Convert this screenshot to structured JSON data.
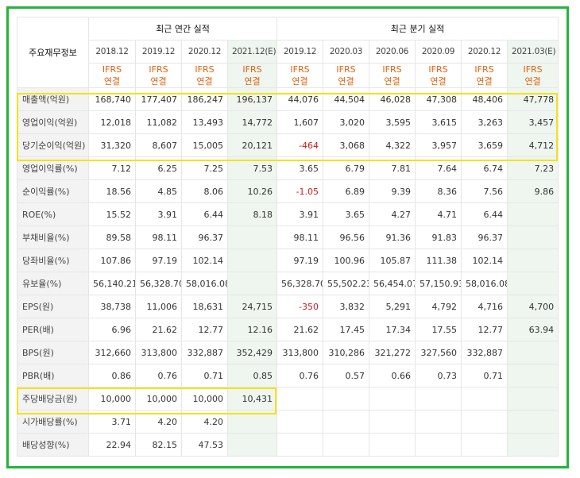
{
  "corner_label": "주요재무정보",
  "groups": {
    "annual": "최근 연간 실적",
    "quarterly": "최근 분기 실적"
  },
  "periods": [
    "2018.12",
    "2019.12",
    "2020.12",
    "2021.12(E)",
    "2019.12",
    "2020.03",
    "2020.06",
    "2020.09",
    "2020.12",
    "2021.03(E)"
  ],
  "ifrs": {
    "line1": "IFRS",
    "line2": "연결"
  },
  "rows": [
    {
      "label": "매출액(억원)",
      "values": [
        "168,740",
        "177,407",
        "186,247",
        "196,137",
        "44,076",
        "44,504",
        "46,028",
        "47,308",
        "48,406",
        "47,778"
      ]
    },
    {
      "label": "영업이익(억원)",
      "values": [
        "12,018",
        "11,082",
        "13,493",
        "14,772",
        "1,607",
        "3,020",
        "3,595",
        "3,615",
        "3,263",
        "3,457"
      ]
    },
    {
      "label": "당기순이익(억원)",
      "values": [
        "31,320",
        "8,607",
        "15,005",
        "20,121",
        "-464",
        "3,068",
        "4,322",
        "3,957",
        "3,659",
        "4,712"
      ]
    },
    {
      "label": "영업이익률(%)",
      "values": [
        "7.12",
        "6.25",
        "7.25",
        "7.53",
        "3.65",
        "6.79",
        "7.81",
        "7.64",
        "6.74",
        "7.23"
      ]
    },
    {
      "label": "순이익률(%)",
      "values": [
        "18.56",
        "4.85",
        "8.06",
        "10.26",
        "-1.05",
        "6.89",
        "9.39",
        "8.36",
        "7.56",
        "9.86"
      ]
    },
    {
      "label": "ROE(%)",
      "values": [
        "15.52",
        "3.91",
        "6.44",
        "8.18",
        "3.91",
        "3.65",
        "4.27",
        "4.71",
        "6.44",
        ""
      ]
    },
    {
      "label": "부채비율(%)",
      "values": [
        "89.58",
        "98.11",
        "96.37",
        "",
        "98.11",
        "96.56",
        "91.36",
        "91.83",
        "96.37",
        ""
      ]
    },
    {
      "label": "당좌비율(%)",
      "values": [
        "107.86",
        "97.19",
        "102.14",
        "",
        "97.19",
        "100.96",
        "105.87",
        "111.38",
        "102.14",
        ""
      ]
    },
    {
      "label": "유보율(%)",
      "values": [
        "56,140.21",
        "56,328.70",
        "58,016.08",
        "",
        "56,328.70",
        "55,502.23",
        "56,454.07",
        "57,150.93",
        "58,016.08",
        ""
      ]
    },
    {
      "label": "EPS(원)",
      "values": [
        "38,738",
        "11,006",
        "18,631",
        "24,715",
        "-350",
        "3,832",
        "5,291",
        "4,792",
        "4,716",
        "4,700"
      ]
    },
    {
      "label": "PER(배)",
      "values": [
        "6.96",
        "21.62",
        "12.77",
        "12.16",
        "21.62",
        "17.45",
        "17.34",
        "17.55",
        "12.77",
        "63.94"
      ]
    },
    {
      "label": "BPS(원)",
      "values": [
        "312,660",
        "313,800",
        "332,887",
        "352,429",
        "313,800",
        "310,286",
        "321,272",
        "327,560",
        "332,887",
        ""
      ]
    },
    {
      "label": "PBR(배)",
      "values": [
        "0.86",
        "0.76",
        "0.71",
        "0.85",
        "0.76",
        "0.57",
        "0.66",
        "0.73",
        "0.71",
        ""
      ]
    },
    {
      "label": "주당배당금(원)",
      "values": [
        "10,000",
        "10,000",
        "10,000",
        "10,431",
        "",
        "",
        "",
        "",
        "",
        ""
      ]
    },
    {
      "label": "시가배당률(%)",
      "values": [
        "3.71",
        "4.20",
        "4.20",
        "",
        "",
        "",
        "",
        "",
        "",
        ""
      ]
    },
    {
      "label": "배당성향(%)",
      "values": [
        "22.94",
        "82.15",
        "47.53",
        "",
        "",
        "",
        "",
        "",
        "",
        ""
      ]
    }
  ],
  "colors": {
    "frame": "#22b53a",
    "highlight": "#f4e219",
    "ifrs": "#e6600e",
    "negative": "#d01a1a",
    "estimate_bg": "#eef6ef"
  }
}
